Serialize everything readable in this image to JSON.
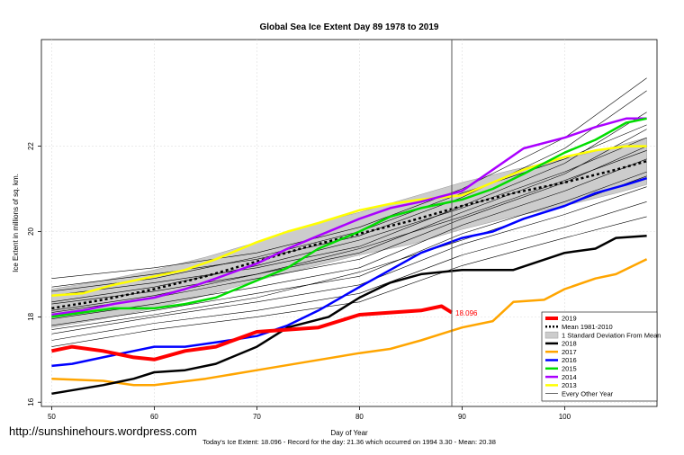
{
  "chart_data": {
    "type": "line",
    "title": "Global Sea Ice Extent Day 89 1978 to 2019",
    "xlabel": "Day of Year",
    "ylabel": "Ice Extent in millions of sq. km.",
    "xlim": [
      49,
      109
    ],
    "ylim": [
      15.9,
      24.5
    ],
    "x_ticks": [
      "50",
      "60",
      "70",
      "80",
      "90",
      "100"
    ],
    "y_ticks": [
      "16",
      "18",
      "20",
      "22"
    ],
    "current_day_marker": 89,
    "annotation": {
      "label": "18.096",
      "x": 89,
      "y": 18.096
    },
    "mean_band": {
      "name": "Mean 1981-2010",
      "x": [
        50,
        55,
        60,
        65,
        70,
        75,
        80,
        85,
        90,
        95,
        100,
        105,
        108
      ],
      "mean": [
        18.2,
        18.4,
        18.65,
        18.95,
        19.3,
        19.65,
        19.95,
        20.25,
        20.6,
        20.9,
        21.15,
        21.45,
        21.65
      ],
      "sd": [
        0.45,
        0.45,
        0.45,
        0.45,
        0.45,
        0.5,
        0.5,
        0.55,
        0.55,
        0.55,
        0.55,
        0.55,
        0.55
      ]
    },
    "series": [
      {
        "name": "2019",
        "color": "#ff0000",
        "width": 4,
        "x": [
          50,
          52,
          55,
          58,
          60,
          63,
          66,
          70,
          73,
          76,
          80,
          83,
          86,
          88,
          89
        ],
        "values": [
          17.2,
          17.3,
          17.2,
          17.05,
          17.0,
          17.2,
          17.3,
          17.65,
          17.7,
          17.75,
          18.05,
          18.1,
          18.15,
          18.25,
          18.1
        ]
      },
      {
        "name": "2018",
        "color": "#000000",
        "width": 2.5,
        "x": [
          50,
          55,
          58,
          60,
          63,
          66,
          70,
          73,
          77,
          80,
          83,
          86,
          90,
          95,
          100,
          103,
          105,
          108
        ],
        "values": [
          16.2,
          16.4,
          16.55,
          16.7,
          16.75,
          16.9,
          17.3,
          17.75,
          18.0,
          18.45,
          18.8,
          19.0,
          19.1,
          19.1,
          19.5,
          19.6,
          19.85,
          19.9
        ]
      },
      {
        "name": "2017",
        "color": "#ffa500",
        "width": 2.5,
        "x": [
          50,
          55,
          58,
          60,
          65,
          70,
          75,
          80,
          83,
          86,
          88,
          90,
          93,
          95,
          98,
          100,
          103,
          105,
          108
        ],
        "values": [
          16.55,
          16.5,
          16.4,
          16.4,
          16.55,
          16.75,
          16.95,
          17.15,
          17.25,
          17.45,
          17.6,
          17.75,
          17.9,
          18.35,
          18.4,
          18.65,
          18.9,
          19.0,
          19.35
        ]
      },
      {
        "name": "2016",
        "color": "#0000ff",
        "width": 2.5,
        "x": [
          50,
          52,
          55,
          58,
          60,
          63,
          66,
          70,
          73,
          76,
          80,
          83,
          86,
          90,
          93,
          96,
          100,
          103,
          106,
          108
        ],
        "values": [
          16.85,
          16.9,
          17.05,
          17.2,
          17.3,
          17.3,
          17.4,
          17.55,
          17.8,
          18.15,
          18.7,
          19.1,
          19.5,
          19.85,
          20.0,
          20.3,
          20.6,
          20.9,
          21.1,
          21.25
        ]
      },
      {
        "name": "2015",
        "color": "#00dd00",
        "width": 2.5,
        "x": [
          50,
          53,
          56,
          60,
          63,
          66,
          70,
          73,
          76,
          80,
          83,
          86,
          90,
          93,
          96,
          100,
          103,
          106,
          108
        ],
        "values": [
          18.0,
          18.1,
          18.2,
          18.2,
          18.3,
          18.45,
          18.85,
          19.15,
          19.6,
          20.0,
          20.35,
          20.55,
          20.75,
          21.0,
          21.35,
          21.85,
          22.15,
          22.55,
          22.65
        ]
      },
      {
        "name": "2014",
        "color": "#aa00ff",
        "width": 2.5,
        "x": [
          50,
          53,
          56,
          60,
          63,
          66,
          70,
          73,
          76,
          80,
          83,
          86,
          90,
          93,
          96,
          100,
          103,
          106,
          108
        ],
        "values": [
          18.05,
          18.15,
          18.3,
          18.45,
          18.65,
          18.9,
          19.25,
          19.6,
          19.9,
          20.3,
          20.55,
          20.7,
          20.95,
          21.45,
          21.95,
          22.2,
          22.45,
          22.65,
          22.65
        ]
      },
      {
        "name": "2013",
        "color": "#ffff00",
        "width": 2.5,
        "x": [
          50,
          53,
          56,
          60,
          63,
          66,
          70,
          73,
          76,
          80,
          83,
          86,
          90,
          93,
          96,
          100,
          103,
          106,
          108
        ],
        "values": [
          18.5,
          18.55,
          18.75,
          18.95,
          19.1,
          19.35,
          19.75,
          20.0,
          20.2,
          20.5,
          20.65,
          20.75,
          20.85,
          21.15,
          21.45,
          21.75,
          21.9,
          22.0,
          22.0
        ]
      }
    ],
    "every_other_year": {
      "name": "Every Other Year",
      "color": "#000000",
      "x": [
        50,
        60,
        70,
        80,
        90,
        100,
        108
      ],
      "lines": [
        [
          18.9,
          19.15,
          19.5,
          20.1,
          21.0,
          22.2,
          23.6
        ],
        [
          18.7,
          19.0,
          19.35,
          19.9,
          20.8,
          21.95,
          23.3
        ],
        [
          18.5,
          18.8,
          19.15,
          19.65,
          20.6,
          21.6,
          22.8
        ],
        [
          18.3,
          18.6,
          19.0,
          19.5,
          20.45,
          21.35,
          22.4
        ],
        [
          18.1,
          18.45,
          18.9,
          19.35,
          20.3,
          21.15,
          22.0
        ],
        [
          17.95,
          18.3,
          18.7,
          19.15,
          20.15,
          20.95,
          21.7
        ],
        [
          17.8,
          18.15,
          18.55,
          18.95,
          19.95,
          20.7,
          21.4
        ],
        [
          17.6,
          18.0,
          18.35,
          18.75,
          19.7,
          20.4,
          21.05
        ],
        [
          17.45,
          17.85,
          18.15,
          18.55,
          19.45,
          20.1,
          20.7
        ],
        [
          17.3,
          17.7,
          18.0,
          18.35,
          19.2,
          19.85,
          20.35
        ],
        [
          18.35,
          18.7,
          19.2,
          19.8,
          20.55,
          21.4,
          22.2
        ],
        [
          18.15,
          18.5,
          19.0,
          19.6,
          20.35,
          21.2,
          21.9
        ],
        [
          17.7,
          18.05,
          18.45,
          19.05,
          19.8,
          20.6,
          21.3
        ],
        [
          18.6,
          18.9,
          19.4,
          20.0,
          20.9,
          21.7,
          22.5
        ]
      ]
    },
    "legend": [
      {
        "label": "2019",
        "kind": "line",
        "color": "#ff0000",
        "width": 4
      },
      {
        "label": "Mean 1981-2010",
        "kind": "dotted",
        "color": "#000000",
        "width": 2.5
      },
      {
        "label": "1 Standard Deviation From Mean",
        "kind": "box",
        "color": "#cccccc"
      },
      {
        "label": "2018",
        "kind": "line",
        "color": "#000000",
        "width": 2.5
      },
      {
        "label": "2017",
        "kind": "line",
        "color": "#ffa500",
        "width": 2.5
      },
      {
        "label": "2016",
        "kind": "line",
        "color": "#0000ff",
        "width": 2.5
      },
      {
        "label": "2015",
        "kind": "line",
        "color": "#00dd00",
        "width": 2.5
      },
      {
        "label": "2014",
        "kind": "line",
        "color": "#aa00ff",
        "width": 2.5
      },
      {
        "label": "2013",
        "kind": "line",
        "color": "#ffff00",
        "width": 2.5
      },
      {
        "label": "Every Other Year",
        "kind": "line",
        "color": "#000000",
        "width": 0.6
      }
    ],
    "legend_position": "bottom-right",
    "grid": true
  },
  "watermark": "http://sunshinehours.wordpress.com",
  "footer": "Today's Ice Extent: 18.096  - Record for the day: 21.36 which occurred on 1994 3.30  - Mean: 20.38"
}
